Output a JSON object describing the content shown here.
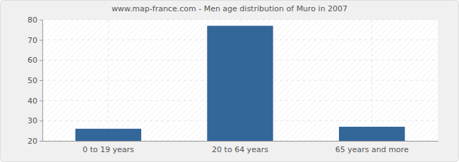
{
  "chart_data": {
    "type": "bar",
    "title": "www.map-france.com - Men age distribution of Muro in 2007",
    "categories": [
      "0 to 19 years",
      "20 to 64 years",
      "65 years and more"
    ],
    "values": [
      26,
      77,
      27
    ],
    "color": "#336699",
    "ylim": [
      20,
      80
    ],
    "yticks": [
      20,
      30,
      40,
      50,
      60,
      70,
      80
    ],
    "grid": true
  }
}
